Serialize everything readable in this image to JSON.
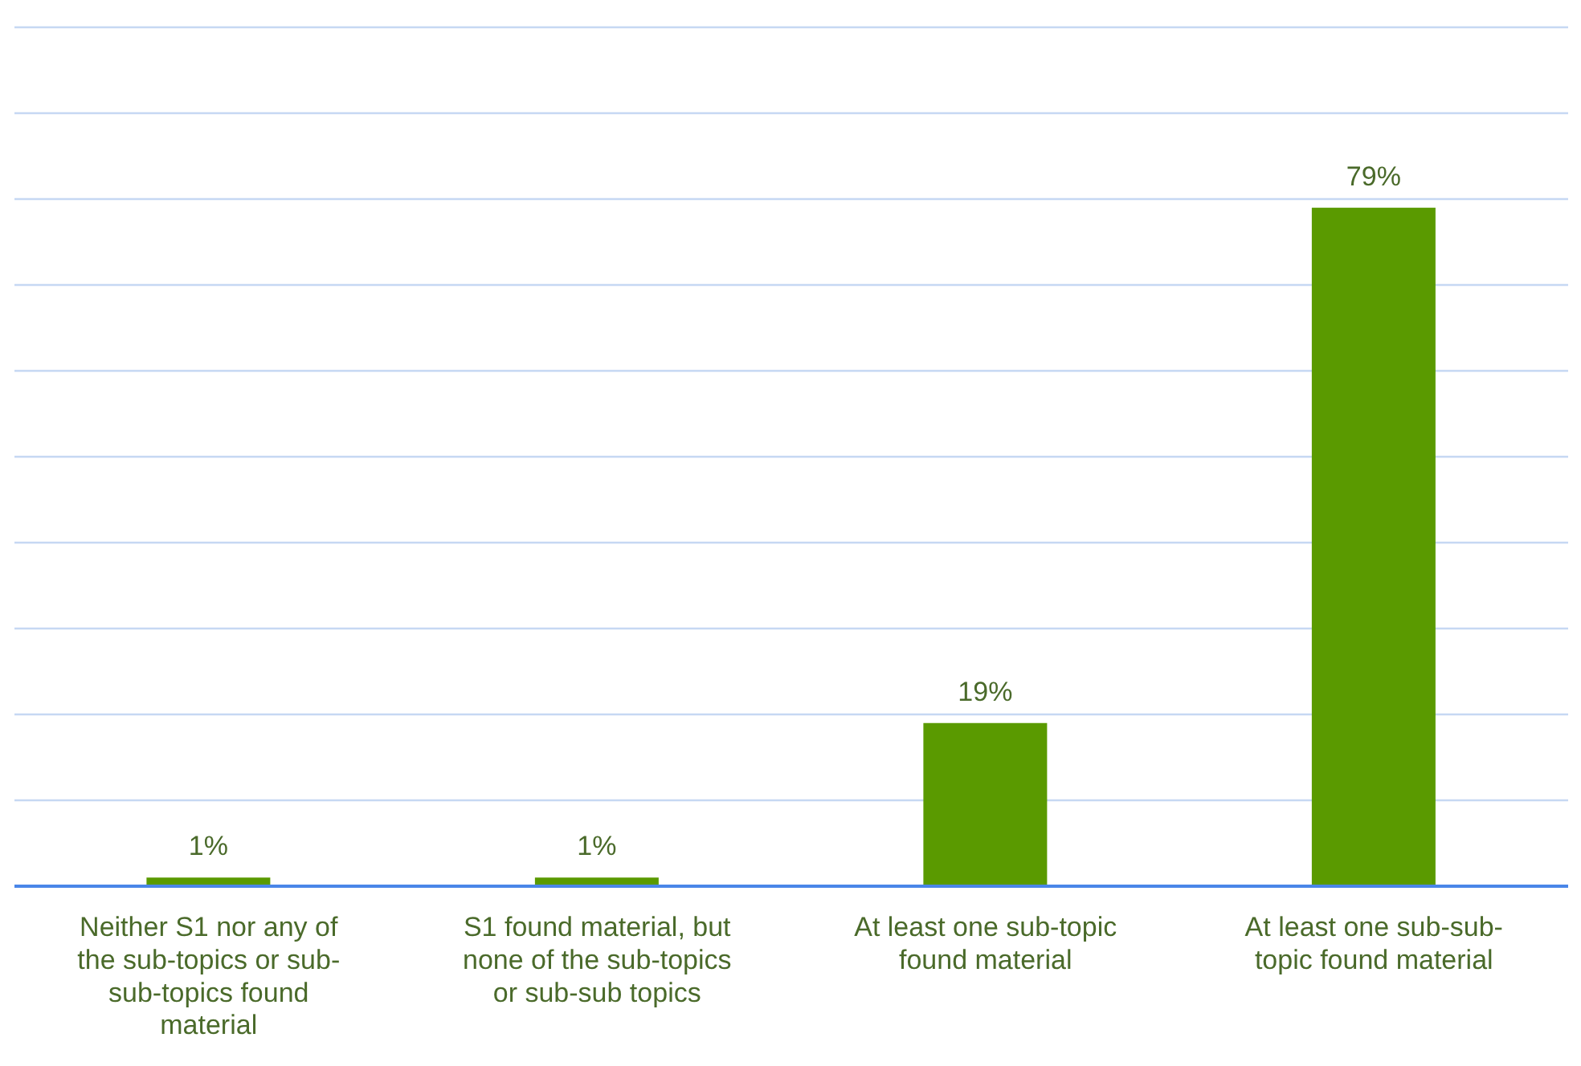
{
  "chart_data": {
    "type": "bar",
    "categories": [
      "Neither S1 nor any of the sub-topics or sub-sub-topics found material",
      "S1 found material, but none of the sub-topics or sub-sub topics",
      "At least one sub-topic found material",
      "At least one sub-sub-topic found material"
    ],
    "values": [
      1,
      1,
      19,
      79
    ],
    "value_labels": [
      "1%",
      "1%",
      "19%",
      "79%"
    ],
    "color": "#5a9a00",
    "ylim": [
      0,
      100
    ],
    "yticks": [
      {
        "value": 0,
        "label": null
      },
      {
        "value": 10,
        "label": null
      },
      {
        "value": 20,
        "label": null
      },
      {
        "value": 30,
        "label": null
      },
      {
        "value": 40,
        "label": null
      },
      {
        "value": 50,
        "label": null
      },
      {
        "value": 60,
        "label": null
      },
      {
        "value": 70,
        "label": null
      },
      {
        "value": 80,
        "label": null
      },
      {
        "value": 90,
        "label": null
      },
      {
        "value": 100,
        "label": null
      }
    ],
    "tick_labels": "x",
    "grid": "y"
  }
}
